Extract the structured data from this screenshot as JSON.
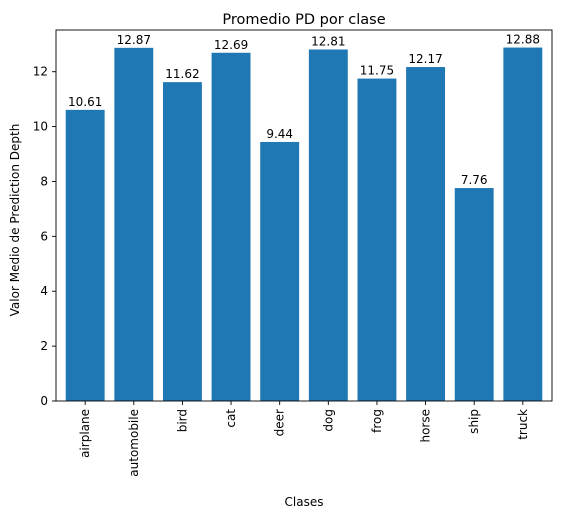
{
  "chart_data": {
    "type": "bar",
    "title": "Promedio PD por clase",
    "xlabel": "Clases",
    "ylabel": "Valor Medio de Prediction Depth",
    "categories": [
      "airplane",
      "automobile",
      "bird",
      "cat",
      "deer",
      "dog",
      "frog",
      "horse",
      "ship",
      "truck"
    ],
    "values": [
      10.61,
      12.87,
      11.62,
      12.69,
      9.44,
      12.81,
      11.75,
      12.17,
      7.76,
      12.88
    ],
    "data_labels": [
      "10.61",
      "12.87",
      "11.62",
      "12.69",
      "9.44",
      "12.81",
      "11.75",
      "12.17",
      "7.76",
      "12.88"
    ],
    "ylim": [
      0,
      13.52
    ],
    "yticks": [
      0,
      2,
      4,
      6,
      8,
      10,
      12
    ],
    "bar_color": "#1f77b4",
    "grid": false,
    "legend": "none"
  }
}
